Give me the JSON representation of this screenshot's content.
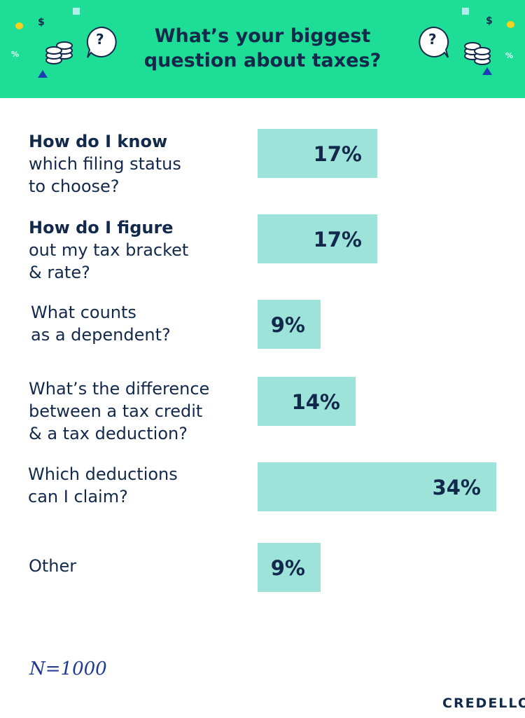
{
  "header": {
    "title_lines": [
      "What’s your biggest",
      "question about taxes?"
    ],
    "background_color": "#1ddd97",
    "decorations": {
      "left": [
        "yellow-dot-icon",
        "dollar-sign-icon",
        "percent-sign-icon",
        "coin-stack-icon",
        "question-bubble-icon",
        "triangle-icon",
        "square-icon"
      ],
      "right": [
        "square-icon",
        "dollar-sign-icon",
        "yellow-dot-icon",
        "question-bubble-icon",
        "coin-stack-icon",
        "percent-sign-icon",
        "triangle-icon"
      ],
      "dollar_symbol": "$",
      "percent_symbol": "%",
      "question_symbol": "?"
    }
  },
  "chart_data": {
    "type": "bar",
    "orientation": "horizontal",
    "title": "What’s your biggest question about taxes?",
    "categories": [
      "How do I know which filing status to choose?",
      "How do I figure out my tax bracket & rate?",
      "What counts as a dependent?",
      "What’s the difference between a tax credit & a tax deduction?",
      "Which deductions can I claim?",
      "Other"
    ],
    "category_lines": [
      [
        {
          "text": "How do I know",
          "bold": true
        },
        {
          "text": "which filing status",
          "bold": false
        },
        {
          "text": "to choose?",
          "bold": false
        }
      ],
      [
        {
          "text": "How do I figure",
          "bold": true
        },
        {
          "text": "out my tax bracket",
          "bold": false
        },
        {
          "text": "& rate?",
          "bold": false
        }
      ],
      [
        {
          "text": "What counts",
          "bold": false
        },
        {
          "text": "as a dependent?",
          "bold": false
        }
      ],
      [
        {
          "text": "What’s the difference",
          "bold": false
        },
        {
          "text": "between a tax credit",
          "bold": false
        },
        {
          "text": "& a tax deduction?",
          "bold": false
        }
      ],
      [
        {
          "text": "Which deductions",
          "bold": false
        },
        {
          "text": "can I claim?",
          "bold": false
        }
      ],
      [
        {
          "text": "Other",
          "bold": false
        }
      ]
    ],
    "values": [
      17,
      17,
      9,
      14,
      34,
      9
    ],
    "value_labels": [
      "17%",
      "17%",
      "9%",
      "14%",
      "34%",
      "9%"
    ],
    "unit": "%",
    "xlim": [
      0,
      34
    ],
    "bar_color": "#9de3da",
    "text_color": "#13294b",
    "grid": false,
    "legend": "none"
  },
  "footnote": "N=1000",
  "logo": "CREDELLO"
}
